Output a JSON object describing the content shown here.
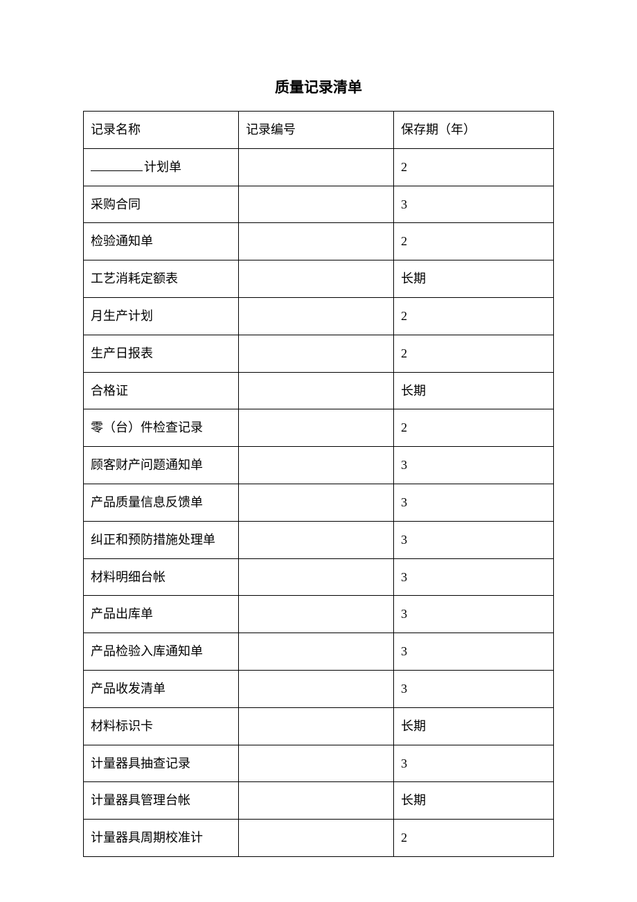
{
  "table": {
    "title": "质量记录清单",
    "columns": [
      "记录名称",
      "记录编号",
      "保存期（年）"
    ],
    "rows": [
      {
        "name": "________计划单",
        "code": "",
        "period": "2",
        "hasBlank": true,
        "nameSuffix": "计划单"
      },
      {
        "name": "采购合同",
        "code": "",
        "period": "3"
      },
      {
        "name": "检验通知单",
        "code": "",
        "period": "2"
      },
      {
        "name": "工艺消耗定额表",
        "code": "",
        "period": "长期"
      },
      {
        "name": "月生产计划",
        "code": "",
        "period": "2"
      },
      {
        "name": "生产日报表",
        "code": "",
        "period": "2"
      },
      {
        "name": "合格证",
        "code": "",
        "period": "长期"
      },
      {
        "name": "零（台）件检查记录",
        "code": "",
        "period": "2"
      },
      {
        "name": "顾客财产问题通知单",
        "code": "",
        "period": "3"
      },
      {
        "name": "产品质量信息反馈单",
        "code": "",
        "period": "3"
      },
      {
        "name": "纠正和预防措施处理单",
        "code": "",
        "period": "3"
      },
      {
        "name": "材料明细台帐",
        "code": "",
        "period": "3"
      },
      {
        "name": "产品出库单",
        "code": "",
        "period": "3"
      },
      {
        "name": "产品检验入库通知单",
        "code": "",
        "period": "3"
      },
      {
        "name": "产品收发清单",
        "code": "",
        "period": "3"
      },
      {
        "name": "材料标识卡",
        "code": "",
        "period": "长期"
      },
      {
        "name": "计量器具抽查记录",
        "code": "",
        "period": "3"
      },
      {
        "name": "计量器具管理台帐",
        "code": "",
        "period": "长期"
      },
      {
        "name": "计量器具周期校准计",
        "code": "",
        "period": "2"
      }
    ],
    "styling": {
      "background_color": "#ffffff",
      "border_color": "#000000",
      "text_color": "#000000",
      "title_fontsize": 21,
      "cell_fontsize": 18,
      "column_widths": [
        "33%",
        "33%",
        "34%"
      ]
    }
  }
}
